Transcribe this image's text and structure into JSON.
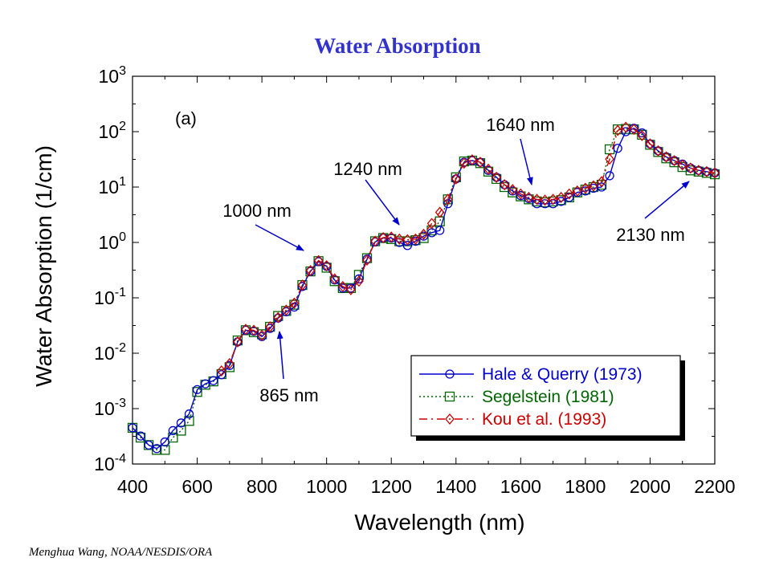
{
  "chart_data": {
    "type": "line",
    "title": "Water Absorption",
    "xlabel": "Wavelength (nm)",
    "ylabel": "Water Absorption (1/cm)",
    "panel_label": "(a)",
    "xlim": [
      400,
      2200
    ],
    "ylim": [
      0.0001,
      1000
    ],
    "yscale": "log",
    "x_ticks": [
      "400",
      "600",
      "800",
      "1000",
      "1200",
      "1400",
      "1600",
      "1800",
      "2000",
      "2200"
    ],
    "y_ticks": [
      {
        "base": "10",
        "exp": "-4"
      },
      {
        "base": "10",
        "exp": "-3"
      },
      {
        "base": "10",
        "exp": "-2"
      },
      {
        "base": "10",
        "exp": "-1"
      },
      {
        "base": "10",
        "exp": "0"
      },
      {
        "base": "10",
        "exp": "1"
      },
      {
        "base": "10",
        "exp": "2"
      },
      {
        "base": "10",
        "exp": "3"
      }
    ],
    "legend_position": "bottom-right",
    "series": [
      {
        "name": "Hale & Querry (1973)",
        "color": "#0000cc",
        "line": "solid",
        "marker": "circle",
        "x": [
          400,
          425,
          450,
          475,
          500,
          525,
          550,
          575,
          600,
          625,
          650,
          675,
          700,
          725,
          750,
          775,
          800,
          825,
          850,
          875,
          900,
          925,
          950,
          975,
          1000,
          1025,
          1050,
          1075,
          1100,
          1125,
          1150,
          1175,
          1200,
          1225,
          1250,
          1275,
          1300,
          1325,
          1350,
          1375,
          1400,
          1425,
          1450,
          1475,
          1500,
          1525,
          1550,
          1575,
          1600,
          1625,
          1650,
          1675,
          1700,
          1725,
          1750,
          1775,
          1800,
          1825,
          1850,
          1875,
          1900,
          1925,
          1950,
          1975,
          2000,
          2025,
          2050,
          2075,
          2100,
          2125,
          2150,
          2175,
          2200
        ],
        "y": [
          0.00045,
          0.00032,
          0.00022,
          0.00019,
          0.00025,
          0.0004,
          0.00055,
          0.0008,
          0.0022,
          0.0028,
          0.0032,
          0.0041,
          0.006,
          0.016,
          0.026,
          0.025,
          0.02,
          0.028,
          0.043,
          0.056,
          0.068,
          0.16,
          0.3,
          0.45,
          0.37,
          0.21,
          0.15,
          0.15,
          0.22,
          0.5,
          1.02,
          1.2,
          1.2,
          1.0,
          0.88,
          1.05,
          1.3,
          1.5,
          1.65,
          5.0,
          14,
          28,
          30,
          28,
          20,
          15,
          11,
          8.5,
          7.0,
          6.2,
          5.0,
          5.0,
          5.0,
          5.5,
          6.5,
          8.0,
          8.5,
          9.5,
          10.0,
          16,
          50,
          100,
          115,
          95,
          60,
          45,
          35,
          30,
          26,
          22,
          20,
          19,
          18
        ]
      },
      {
        "name": "Segelstein (1981)",
        "color": "#006600",
        "line": "dotted",
        "marker": "square",
        "x": [
          400,
          425,
          450,
          475,
          500,
          525,
          550,
          575,
          600,
          625,
          650,
          675,
          700,
          725,
          750,
          775,
          800,
          825,
          850,
          875,
          900,
          925,
          950,
          975,
          1000,
          1025,
          1050,
          1075,
          1100,
          1125,
          1150,
          1175,
          1200,
          1225,
          1250,
          1275,
          1300,
          1325,
          1350,
          1375,
          1400,
          1425,
          1450,
          1475,
          1500,
          1525,
          1550,
          1575,
          1600,
          1625,
          1650,
          1675,
          1700,
          1725,
          1750,
          1775,
          1800,
          1825,
          1850,
          1875,
          1900,
          1925,
          1950,
          1975,
          2000,
          2025,
          2050,
          2075,
          2100,
          2125,
          2150,
          2175,
          2200
        ],
        "y": [
          0.00045,
          0.0003,
          0.00022,
          0.00018,
          0.00018,
          0.0003,
          0.0004,
          0.0006,
          0.002,
          0.0027,
          0.0031,
          0.0042,
          0.0056,
          0.017,
          0.026,
          0.024,
          0.022,
          0.03,
          0.047,
          0.058,
          0.075,
          0.17,
          0.3,
          0.46,
          0.35,
          0.2,
          0.15,
          0.15,
          0.26,
          0.52,
          1.05,
          1.2,
          1.15,
          1.05,
          1.05,
          1.1,
          1.2,
          1.65,
          2.4,
          6.0,
          15,
          29,
          30,
          27,
          19,
          14,
          10,
          8.0,
          6.8,
          6.0,
          5.5,
          5.3,
          5.5,
          5.8,
          6.5,
          8.0,
          9.0,
          10.0,
          11.0,
          48,
          110,
          112,
          110,
          88,
          58,
          43,
          33,
          28,
          23,
          20,
          19,
          18,
          17
        ]
      },
      {
        "name": "Kou et al. (1993)",
        "color": "#cc0000",
        "line": "dashdot",
        "marker": "diamond",
        "x": [
          675,
          700,
          725,
          750,
          775,
          800,
          825,
          850,
          875,
          900,
          925,
          950,
          975,
          1000,
          1025,
          1050,
          1075,
          1100,
          1125,
          1150,
          1175,
          1200,
          1225,
          1250,
          1275,
          1300,
          1325,
          1350,
          1375,
          1400,
          1425,
          1450,
          1475,
          1500,
          1525,
          1550,
          1575,
          1600,
          1625,
          1650,
          1675,
          1700,
          1725,
          1750,
          1775,
          1800,
          1825,
          1850,
          1875,
          1900,
          1925,
          1950,
          1975,
          2000,
          2025,
          2050,
          2075,
          2100,
          2125,
          2150,
          2175,
          2200
        ],
        "y": [
          0.0048,
          0.0065,
          0.016,
          0.027,
          0.026,
          0.021,
          0.03,
          0.044,
          0.06,
          0.08,
          0.17,
          0.31,
          0.47,
          0.38,
          0.22,
          0.16,
          0.14,
          0.2,
          0.48,
          1.05,
          1.22,
          1.25,
          1.15,
          1.12,
          1.15,
          1.4,
          2.2,
          3.5,
          6.0,
          14,
          27,
          31,
          28,
          21,
          15,
          11,
          9.0,
          7.5,
          6.5,
          6.0,
          5.8,
          6.0,
          6.5,
          7.5,
          8.5,
          9.5,
          10.5,
          12.5,
          32,
          105,
          120,
          110,
          85,
          60,
          45,
          35,
          30,
          25,
          22,
          20,
          19,
          18
        ]
      }
    ],
    "annotations": [
      {
        "text": "865 nm",
        "at_x": 865
      },
      {
        "text": "1000 nm",
        "at_x": 960
      },
      {
        "text": "1240 nm",
        "at_x": 1240
      },
      {
        "text": "1640 nm",
        "at_x": 1640
      },
      {
        "text": "2130 nm",
        "at_x": 2130
      }
    ]
  },
  "credit": "Menghua Wang, NOAA/NESDIS/ORA"
}
